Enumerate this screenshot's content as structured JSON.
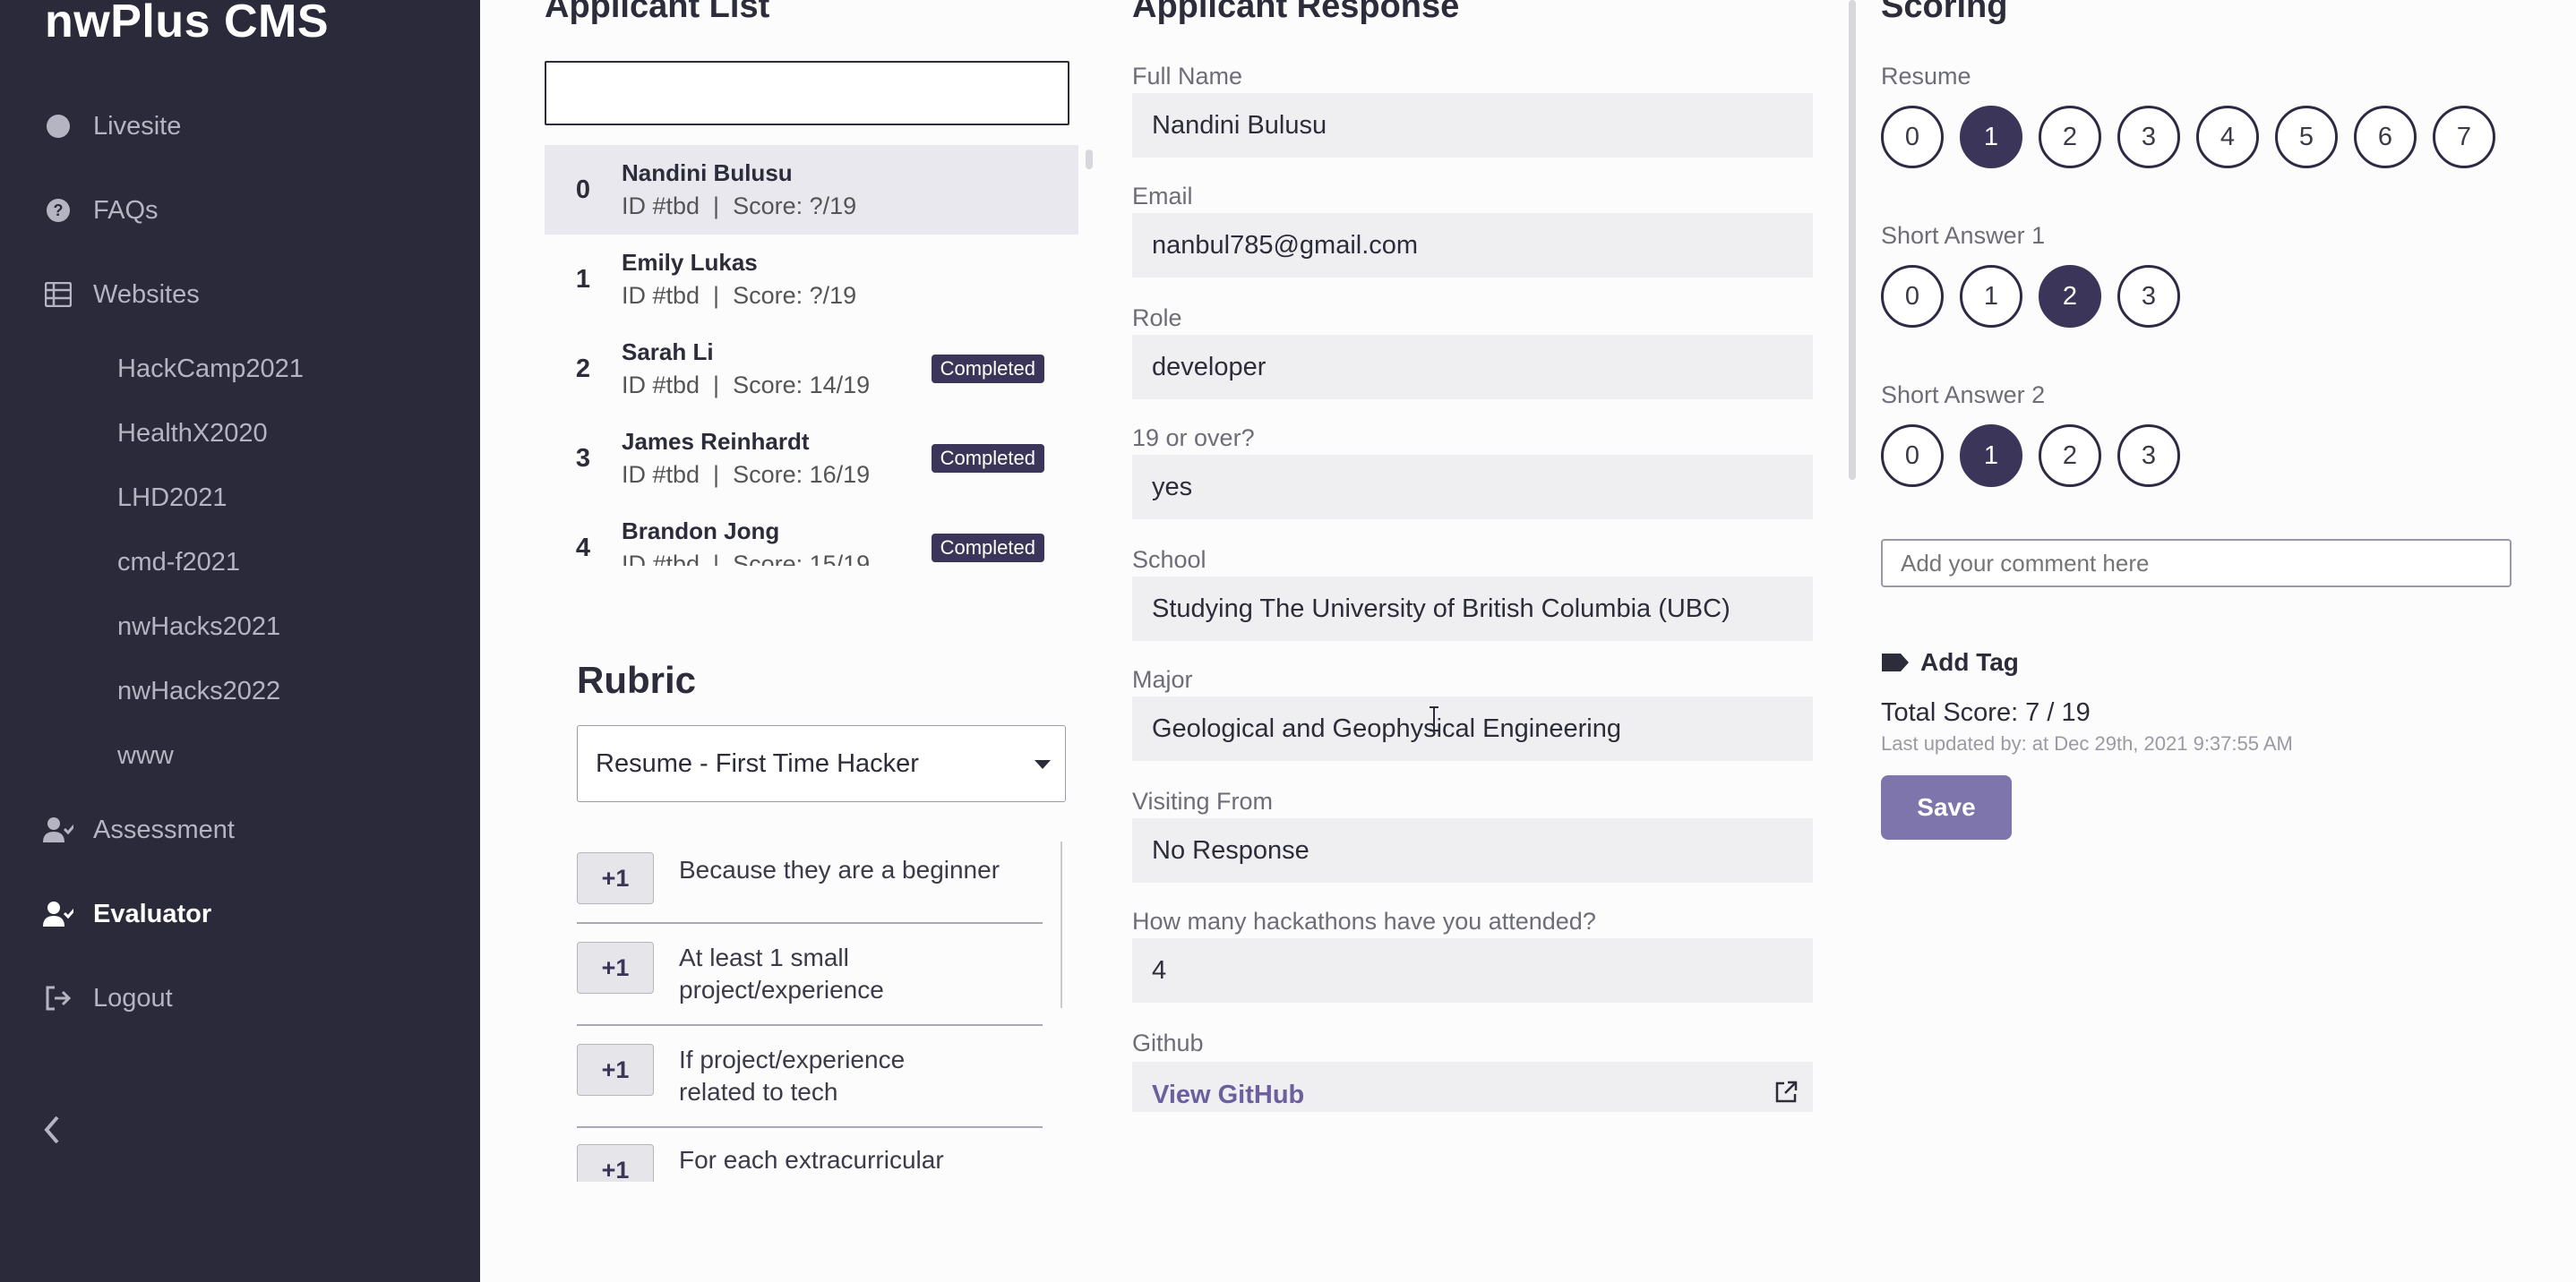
{
  "sidebar": {
    "brand": "nwPlus CMS",
    "nav": {
      "livesite": "Livesite",
      "faqs": "FAQs",
      "websites": "Websites",
      "assessment": "Assessment",
      "evaluator": "Evaluator",
      "logout": "Logout"
    },
    "websites": [
      "HackCamp2021",
      "HealthX2020",
      "LHD2021",
      "cmd-f2021",
      "nwHacks2021",
      "nwHacks2022",
      "www"
    ]
  },
  "columns": {
    "list_title": "Applicant List",
    "response_title": "Applicant Response",
    "scoring_title": "Scoring"
  },
  "applicants": [
    {
      "index": "0",
      "name": "Nandini Bulusu",
      "meta": "ID #tbd  |  Score: ?/19",
      "badge": ""
    },
    {
      "index": "1",
      "name": "Emily Lukas",
      "meta": "ID #tbd  |  Score: ?/19",
      "badge": ""
    },
    {
      "index": "2",
      "name": "Sarah Li",
      "meta": "ID #tbd  |  Score: 14/19",
      "badge": "Completed"
    },
    {
      "index": "3",
      "name": "James Reinhardt",
      "meta": "ID #tbd  |  Score: 16/19",
      "badge": "Completed"
    },
    {
      "index": "4",
      "name": "Brandon Jong",
      "meta": "ID #tbd  |  Score: 15/19",
      "badge": "Completed"
    }
  ],
  "rubric": {
    "title": "Rubric",
    "selected": "Resume - First Time Hacker",
    "items": [
      {
        "button": "+1",
        "text": "Because they are a beginner"
      },
      {
        "button": "+1",
        "text": "At least 1 small project/experience"
      },
      {
        "button": "+1",
        "text": "If project/experience related to tech"
      },
      {
        "button": "+1",
        "text": "For each extracurricular"
      }
    ]
  },
  "response": {
    "full_name": {
      "label": "Full Name",
      "value": "Nandini Bulusu"
    },
    "email": {
      "label": "Email",
      "value": "nanbul785@gmail.com"
    },
    "role": {
      "label": "Role",
      "value": "developer"
    },
    "age": {
      "label": "19 or over?",
      "value": "yes"
    },
    "school": {
      "label": "School",
      "value": "Studying The University of British Columbia (UBC)"
    },
    "major": {
      "label": "Major",
      "value": "Geological and Geophysical Engineering"
    },
    "visiting": {
      "label": "Visiting From",
      "value": "No Response"
    },
    "hackathons": {
      "label": "How many hackathons have you attended?",
      "value": "4"
    },
    "github": {
      "label": "Github",
      "value": "View GitHub"
    }
  },
  "scoring": {
    "resume": {
      "label": "Resume",
      "options": [
        "0",
        "1",
        "2",
        "3",
        "4",
        "5",
        "6",
        "7"
      ],
      "selected": 1
    },
    "sa1": {
      "label": "Short Answer 1",
      "options": [
        "0",
        "1",
        "2",
        "3"
      ],
      "selected": 2
    },
    "sa2": {
      "label": "Short Answer 2",
      "options": [
        "0",
        "1",
        "2",
        "3"
      ],
      "selected": 1
    },
    "comment_placeholder": "Add your comment here",
    "add_tag": "Add Tag",
    "total": "Total Score: 7 / 19",
    "updated": "Last updated by: at Dec 29th, 2021 9:37:55 AM",
    "save": "Save"
  }
}
